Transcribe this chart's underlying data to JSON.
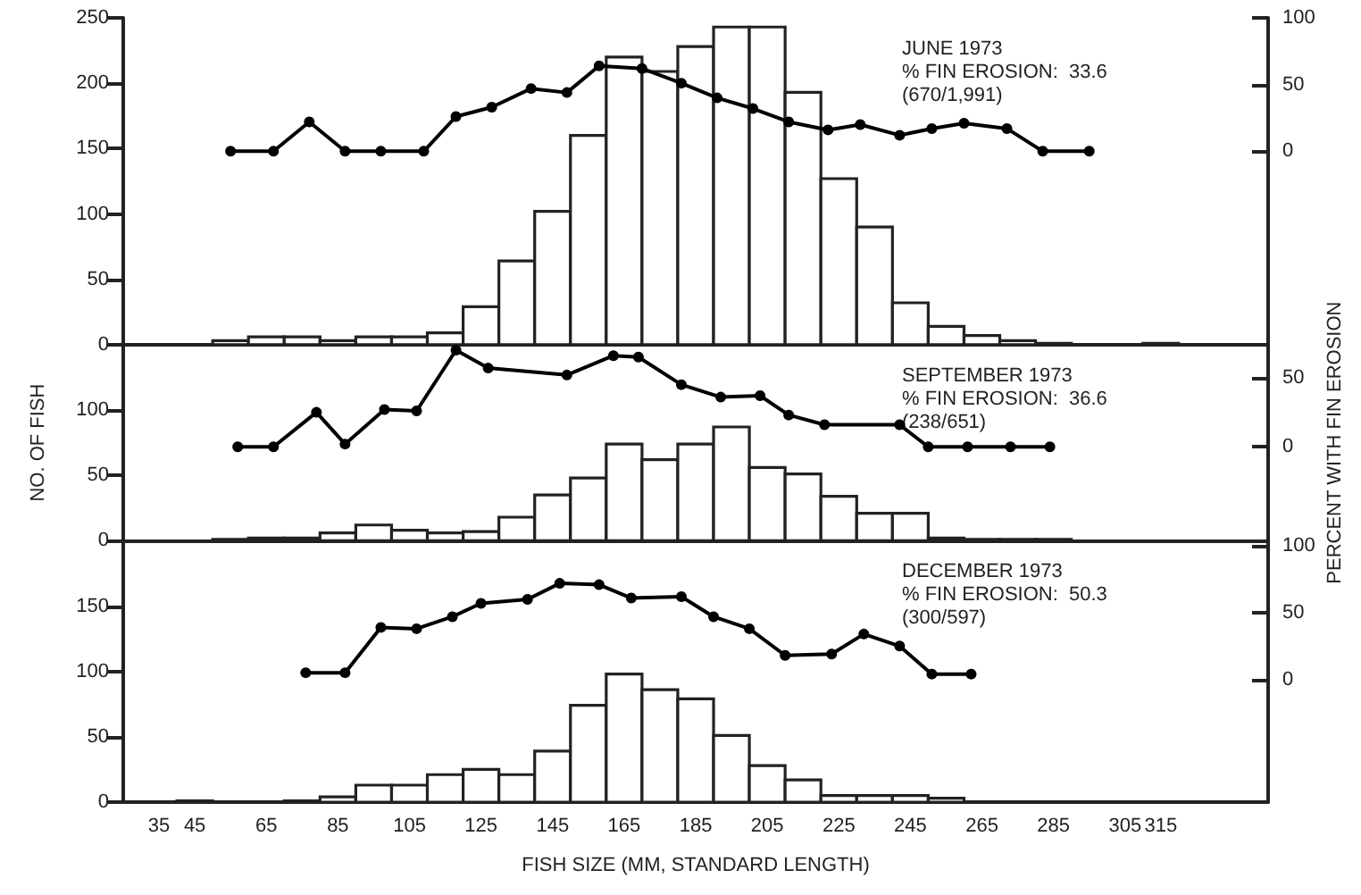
{
  "chart_data": [
    {
      "type": "histogram",
      "bins": [
        40,
        50,
        60,
        70,
        80,
        90,
        100,
        110,
        120,
        130,
        140,
        150,
        160,
        170,
        180,
        190,
        200,
        210,
        220,
        230,
        240,
        250,
        260,
        270,
        280,
        290,
        300,
        310,
        320
      ],
      "values": [
        0,
        3,
        6,
        6,
        3,
        6,
        6,
        9,
        29,
        64,
        102,
        160,
        220,
        209,
        228,
        243,
        243,
        193,
        127,
        90,
        32,
        14,
        7,
        3,
        1,
        0,
        0,
        1
      ],
      "color": "#ffffff",
      "series": [
        {
          "type": "line",
          "axis": "y2",
          "color": "#000000",
          "x": [
            55,
            67,
            77,
            87,
            97,
            109,
            118,
            128,
            139,
            149,
            158,
            170,
            181,
            191,
            201,
            211,
            222,
            231,
            242,
            251,
            260,
            272,
            282,
            295
          ],
          "values": [
            0,
            0,
            22,
            0,
            0,
            0,
            26,
            33,
            47,
            44,
            64,
            62,
            51,
            40,
            32,
            22,
            16,
            20,
            12,
            17,
            21,
            17,
            0,
            0
          ]
        }
      ],
      "xlim": [
        25,
        345
      ],
      "ylim": [
        0,
        250
      ],
      "yticks": [
        0,
        50,
        100,
        150,
        200,
        250
      ],
      "y2lim": [
        -145,
        100
      ],
      "y2ticks": [
        0,
        50,
        100
      ],
      "marker": "circle",
      "tick_labels": "y",
      "annotations": [
        "JUNE 1973",
        "% FIN EROSION:  33.6",
        "(670/1,991)"
      ]
    },
    {
      "type": "histogram",
      "bins": [
        40,
        50,
        60,
        70,
        80,
        90,
        100,
        110,
        120,
        130,
        140,
        150,
        160,
        170,
        180,
        190,
        200,
        210,
        220,
        230,
        240,
        250,
        260,
        270,
        280,
        290,
        300,
        310,
        320
      ],
      "values": [
        0,
        1,
        2,
        2,
        6,
        12,
        8,
        6,
        7,
        18,
        35,
        48,
        74,
        62,
        74,
        87,
        56,
        51,
        34,
        21,
        21,
        2,
        1,
        1,
        1,
        0,
        0,
        0
      ],
      "color": "#ffffff",
      "series": [
        {
          "type": "line",
          "axis": "y2",
          "color": "#000000",
          "x": [
            57,
            67,
            79,
            87,
            98,
            107,
            118,
            127,
            149,
            162,
            169,
            181,
            192,
            203,
            211,
            221,
            242,
            250,
            261,
            273,
            284
          ],
          "values": [
            0,
            0,
            25,
            2,
            27,
            26,
            70,
            57,
            52,
            66,
            65,
            45,
            36,
            37,
            23,
            16,
            16,
            0,
            0,
            0,
            0
          ]
        }
      ],
      "xlim": [
        25,
        345
      ],
      "ylim": [
        0,
        150
      ],
      "yticks": [
        0,
        50,
        100
      ],
      "y2lim": [
        -68,
        74
      ],
      "y2ticks": [
        0,
        50
      ],
      "marker": "circle",
      "tick_labels": "y",
      "ylabel": "NO. OF FISH",
      "y2label": "PERCENT WITH FIN EROSION",
      "annotations": [
        "SEPTEMBER 1973",
        "% FIN EROSION:  36.6",
        "(238/651)"
      ]
    },
    {
      "type": "histogram",
      "bins": [
        40,
        50,
        60,
        70,
        80,
        90,
        100,
        110,
        120,
        130,
        140,
        150,
        160,
        170,
        180,
        190,
        200,
        210,
        220,
        230,
        240,
        250,
        260,
        270,
        280,
        290,
        300,
        310,
        320
      ],
      "values": [
        1,
        0,
        0,
        1,
        4,
        13,
        13,
        21,
        25,
        21,
        39,
        74,
        98,
        86,
        79,
        51,
        28,
        17,
        5,
        5,
        5,
        3,
        0,
        0,
        0,
        0,
        0,
        0
      ],
      "color": "#ffffff",
      "series": [
        {
          "type": "line",
          "axis": "y2",
          "color": "#000000",
          "x": [
            76,
            87,
            97,
            107,
            117,
            125,
            138,
            147,
            158,
            167,
            181,
            190,
            200,
            210,
            223,
            232,
            242,
            251,
            262
          ],
          "values": [
            5,
            5,
            39,
            38,
            47,
            57,
            60,
            72,
            71,
            61,
            62,
            47,
            38,
            18,
            19,
            34,
            25,
            4,
            4
          ]
        }
      ],
      "xlim": [
        25,
        345
      ],
      "xticks": [
        35,
        45,
        65,
        85,
        105,
        125,
        145,
        165,
        185,
        205,
        225,
        245,
        265,
        285,
        305,
        315
      ],
      "ylim": [
        0,
        200
      ],
      "yticks": [
        0,
        50,
        100,
        150
      ],
      "y2lim": [
        -92,
        104
      ],
      "y2ticks": [
        0,
        50,
        100
      ],
      "marker": "circle",
      "xlabel": "FISH SIZE (MM, STANDARD LENGTH)",
      "annotations": [
        "DECEMBER 1973",
        "% FIN EROSION:  50.3",
        "(300/597)"
      ]
    }
  ]
}
